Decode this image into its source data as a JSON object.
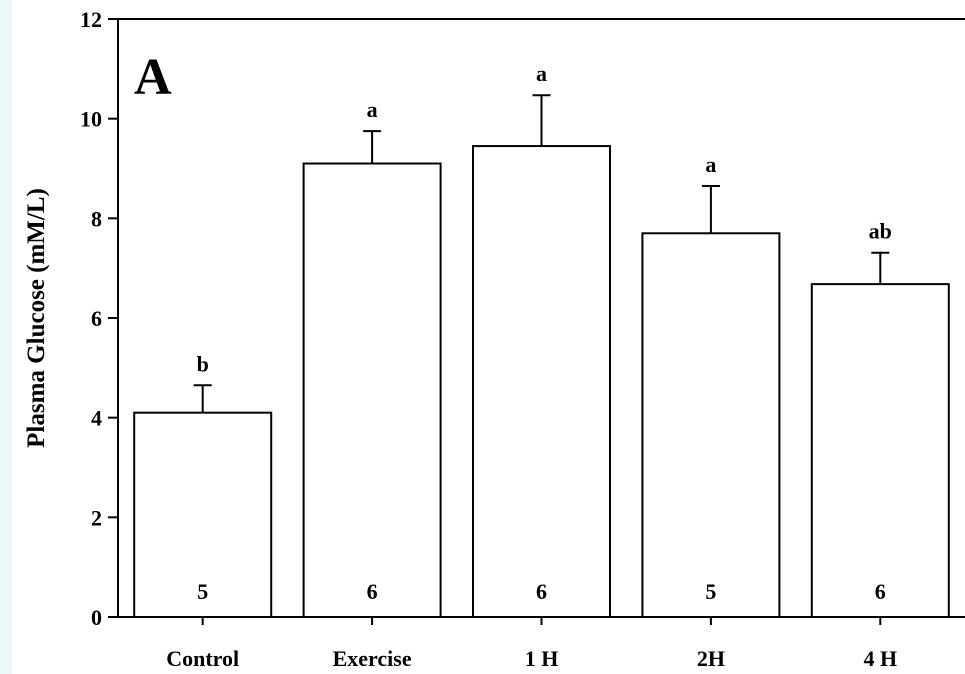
{
  "chart_data": {
    "type": "bar",
    "panel_label": "A",
    "ylabel": "Plasma Glucose (mM/L)",
    "xlabel": "",
    "ylim": [
      0,
      12
    ],
    "yticks": [
      0,
      2,
      4,
      6,
      8,
      10,
      12
    ],
    "categories": [
      "Control",
      "Exercise",
      "1 H",
      "2H",
      "4 H"
    ],
    "values": [
      4.1,
      9.1,
      9.45,
      7.7,
      6.68
    ],
    "errors": [
      0.55,
      0.65,
      1.02,
      0.95,
      0.63
    ],
    "significance": [
      "b",
      "a",
      "a",
      "a",
      "ab"
    ],
    "n": [
      "5",
      "6",
      "6",
      "5",
      "6"
    ],
    "bar_fill": "#ffffff",
    "edge_color": "#000000",
    "grid": false
  }
}
